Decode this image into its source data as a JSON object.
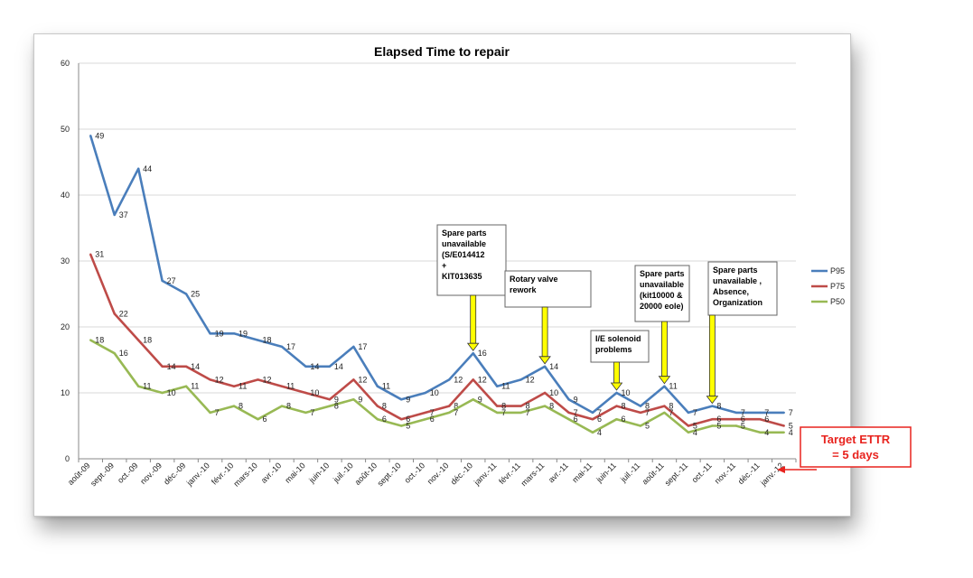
{
  "chart_data": {
    "type": "line",
    "title": "Elapsed Time to repair",
    "categories": [
      "août-09",
      "sept.-09",
      "oct.-09",
      "nov.-09",
      "déc.-09",
      "janv.-10",
      "févr.-10",
      "mars-10",
      "avr.-10",
      "mai-10",
      "juin-10",
      "juil.-10",
      "août-10",
      "sept.-10",
      "oct.-10",
      "nov.-10",
      "déc.-10",
      "janv.-11",
      "févr.-11",
      "mars-11",
      "avr.-11",
      "mai-11",
      "juin-11",
      "juil.-11",
      "août-11",
      "sept.-11",
      "oct.-11",
      "nov.-11",
      "déc.-11",
      "janv.-12"
    ],
    "ylim": [
      0,
      60
    ],
    "yticks": [
      0,
      10,
      20,
      30,
      40,
      50,
      60
    ],
    "grid": true,
    "legend_position": "right",
    "series": [
      {
        "name": "P95",
        "color": "#4a7ebb",
        "values": [
          49,
          37,
          44,
          27,
          25,
          19,
          19,
          18,
          17,
          14,
          14,
          17,
          11,
          9,
          10,
          12,
          16,
          11,
          12,
          14,
          9,
          7,
          10,
          8,
          11,
          7,
          8,
          7,
          7,
          7
        ]
      },
      {
        "name": "P75",
        "color": "#be4b48",
        "values": [
          31,
          22,
          18,
          14,
          14,
          12,
          11,
          12,
          11,
          10,
          9,
          12,
          8,
          6,
          7,
          8,
          12,
          8,
          8,
          10,
          7,
          6,
          8,
          7,
          8,
          5,
          6,
          6,
          6,
          5
        ]
      },
      {
        "name": "P50",
        "color": "#98b954",
        "values": [
          18,
          16,
          11,
          10,
          11,
          7,
          8,
          6,
          8,
          7,
          8,
          9,
          6,
          5,
          6,
          7,
          9,
          7,
          7,
          8,
          6,
          4,
          6,
          5,
          7,
          4,
          5,
          5,
          4,
          4
        ]
      }
    ],
    "annotations": [
      {
        "index": 16,
        "lines": [
          "Spare parts",
          "unavailable",
          "(S/E014412",
          "+",
          "KIT013635"
        ]
      },
      {
        "index": 19,
        "lines": [
          "Rotary valve",
          "rework"
        ]
      },
      {
        "index": 22,
        "lines": [
          "I/E solenoid",
          "problems"
        ]
      },
      {
        "index": 24,
        "lines": [
          "Spare parts",
          "unavailable",
          "(kit10000 &",
          "20000 eole)"
        ]
      },
      {
        "index": 26,
        "lines": [
          "Spare parts",
          "unavailable ,",
          "Absence,",
          "Organization"
        ]
      }
    ],
    "target": {
      "lines": [
        "Target ETTR",
        "=  5 days"
      ],
      "value": 5,
      "color": "#e8231e"
    }
  }
}
